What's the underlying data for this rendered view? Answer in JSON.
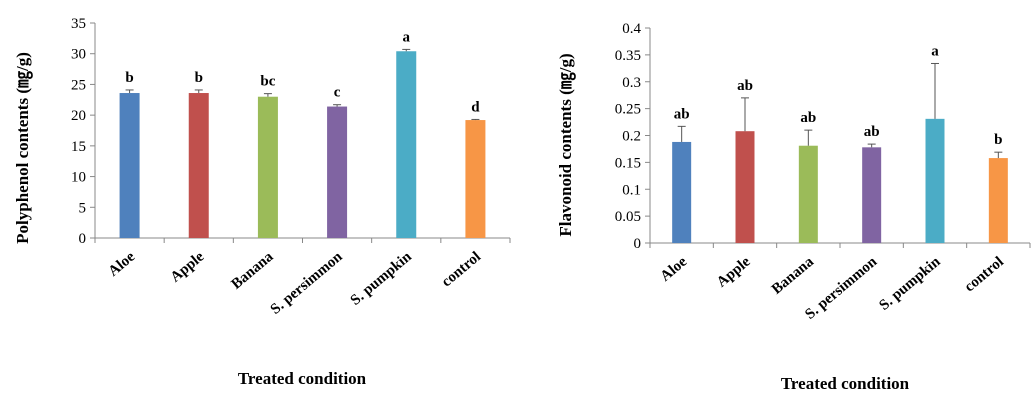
{
  "chart_data": [
    {
      "type": "bar",
      "xlabel": "Treated condition",
      "ylabel": "Polyphenol contents (㎎/g)",
      "ylim": [
        0,
        35
      ],
      "yticks": [
        0,
        5,
        10,
        15,
        20,
        25,
        30,
        35
      ],
      "categories": [
        "Aloe",
        "Apple",
        "Banana",
        "S. persimmon",
        "S. pumpkin",
        "control"
      ],
      "values": [
        23.6,
        23.6,
        23.0,
        21.4,
        30.4,
        19.2
      ],
      "errors": [
        0.5,
        0.5,
        0.5,
        0.3,
        0.3,
        0.1
      ],
      "significance": [
        "b",
        "b",
        "bc",
        "c",
        "a",
        "d"
      ],
      "colors": [
        "#4F81BD",
        "#C0504D",
        "#9BBB59",
        "#8064A2",
        "#4BACC6",
        "#F79646"
      ],
      "grid": false,
      "legend": "none"
    },
    {
      "type": "bar",
      "xlabel": "Treated condition",
      "ylabel": "Flavonoid contents (㎎/g)",
      "ylim": [
        0,
        0.4
      ],
      "yticks": [
        "0",
        "0.05",
        "0.1",
        "0.15",
        "0.2",
        "0.25",
        "0.3",
        "0.35",
        "0.4"
      ],
      "categories": [
        "Aloe",
        "Apple",
        "Banana",
        "S. persimmon",
        "S. pumpkin",
        "control"
      ],
      "values": [
        0.188,
        0.208,
        0.181,
        0.178,
        0.231,
        0.158
      ],
      "errors": [
        0.029,
        0.062,
        0.029,
        0.006,
        0.103,
        0.011
      ],
      "significance": [
        "ab",
        "ab",
        "ab",
        "ab",
        "a",
        "b"
      ],
      "colors": [
        "#4F81BD",
        "#C0504D",
        "#9BBB59",
        "#8064A2",
        "#4BACC6",
        "#F79646"
      ],
      "grid": false,
      "legend": "none"
    }
  ]
}
